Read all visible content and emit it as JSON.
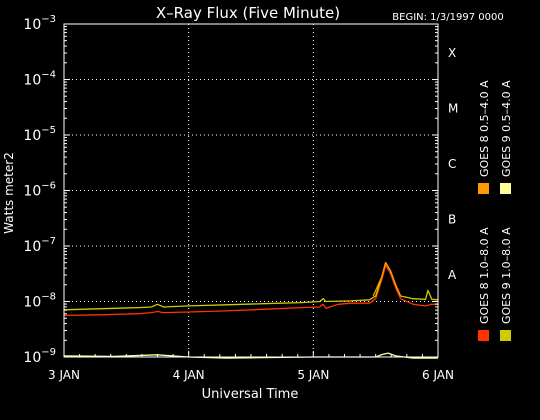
{
  "chart_data": {
    "type": "line",
    "title": "X–Ray Flux (Five Minute)",
    "begin_label": "BEGIN: 1/3/1997 0000",
    "xlabel": "Universal Time",
    "ylabel": "Watts meter2",
    "scale": "log",
    "ylim_exponent": [
      -9,
      -3
    ],
    "y_ticks": [
      {
        "exp": -3,
        "mantissa": "10",
        "power": "−3"
      },
      {
        "exp": -4,
        "mantissa": "10",
        "power": "−4"
      },
      {
        "exp": -5,
        "mantissa": "10",
        "power": "−5"
      },
      {
        "exp": -6,
        "mantissa": "10",
        "power": "−6"
      },
      {
        "exp": -7,
        "mantissa": "10",
        "power": "−7"
      },
      {
        "exp": -8,
        "mantissa": "10",
        "power": "−8"
      },
      {
        "exp": -9,
        "mantissa": "10",
        "power": "−9"
      }
    ],
    "x_ticks": [
      {
        "day": 0,
        "label": "3 JAN"
      },
      {
        "day": 1,
        "label": "4 JAN"
      },
      {
        "day": 2,
        "label": "5 JAN"
      },
      {
        "day": 3,
        "label": "6 JAN"
      }
    ],
    "flare_classes": [
      {
        "label": "X",
        "exp": -3.5
      },
      {
        "label": "M",
        "exp": -4.5
      },
      {
        "label": "C",
        "exp": -5.5
      },
      {
        "label": "B",
        "exp": -6.5
      },
      {
        "label": "A",
        "exp": -7.5
      }
    ],
    "gridlines_exp": [
      -4,
      -5,
      -6,
      -7,
      -8
    ],
    "grid": true,
    "legend_placement": "right",
    "series": [
      {
        "name": "GOES 8 1.0–8.0 A",
        "color": "#ff3300",
        "points": [
          [
            0.0,
            -8.25
          ],
          [
            0.3,
            -8.24
          ],
          [
            0.6,
            -8.22
          ],
          [
            0.7,
            -8.2
          ],
          [
            0.75,
            -8.18
          ],
          [
            0.8,
            -8.2
          ],
          [
            1.0,
            -8.19
          ],
          [
            1.3,
            -8.17
          ],
          [
            1.6,
            -8.14
          ],
          [
            1.9,
            -8.11
          ],
          [
            2.05,
            -8.1
          ],
          [
            2.08,
            -8.05
          ],
          [
            2.1,
            -8.12
          ],
          [
            2.2,
            -8.05
          ],
          [
            2.3,
            -8.03
          ],
          [
            2.45,
            -8.03
          ],
          [
            2.5,
            -7.95
          ],
          [
            2.55,
            -7.6
          ],
          [
            2.58,
            -7.35
          ],
          [
            2.62,
            -7.5
          ],
          [
            2.66,
            -7.75
          ],
          [
            2.7,
            -7.95
          ],
          [
            2.8,
            -8.05
          ],
          [
            2.9,
            -8.08
          ],
          [
            2.95,
            -8.05
          ],
          [
            3.0,
            -8.05
          ]
        ]
      },
      {
        "name": "GOES 8 0.5–4.0 A",
        "color": "#ff9900",
        "points": [
          [
            2.48,
            -7.9
          ],
          [
            2.55,
            -7.55
          ],
          [
            2.58,
            -7.3
          ],
          [
            2.62,
            -7.45
          ],
          [
            2.66,
            -7.7
          ],
          [
            2.7,
            -7.9
          ]
        ]
      },
      {
        "name": "GOES 9 1.0–8.0 A",
        "color": "#cccc00",
        "points": [
          [
            0.0,
            -8.15
          ],
          [
            0.3,
            -8.13
          ],
          [
            0.6,
            -8.11
          ],
          [
            0.7,
            -8.1
          ],
          [
            0.75,
            -8.05
          ],
          [
            0.8,
            -8.1
          ],
          [
            1.0,
            -8.08
          ],
          [
            1.3,
            -8.06
          ],
          [
            1.6,
            -8.04
          ],
          [
            1.9,
            -8.02
          ],
          [
            2.05,
            -8.0
          ],
          [
            2.08,
            -7.95
          ],
          [
            2.1,
            -8.0
          ],
          [
            2.3,
            -7.99
          ],
          [
            2.45,
            -7.97
          ],
          [
            2.5,
            -7.9
          ],
          [
            2.55,
            -7.55
          ],
          [
            2.58,
            -7.3
          ],
          [
            2.62,
            -7.45
          ],
          [
            2.66,
            -7.7
          ],
          [
            2.7,
            -7.9
          ],
          [
            2.8,
            -7.95
          ],
          [
            2.9,
            -7.96
          ],
          [
            2.92,
            -7.8
          ],
          [
            2.95,
            -7.96
          ],
          [
            3.0,
            -7.97
          ]
        ]
      },
      {
        "name": "GOES 9 0.5–4.0 A",
        "color": "#ffff99",
        "points": [
          [
            0.0,
            -8.98
          ],
          [
            0.4,
            -8.99
          ],
          [
            0.75,
            -8.96
          ],
          [
            0.8,
            -8.97
          ],
          [
            1.0,
            -9.0
          ],
          [
            1.3,
            -9.02
          ],
          [
            1.6,
            -9.01
          ],
          [
            2.0,
            -9.0
          ],
          [
            2.3,
            -9.0
          ],
          [
            2.5,
            -9.0
          ],
          [
            2.56,
            -8.95
          ],
          [
            2.6,
            -8.93
          ],
          [
            2.66,
            -8.98
          ],
          [
            2.8,
            -9.02
          ],
          [
            3.0,
            -9.02
          ]
        ]
      }
    ]
  }
}
